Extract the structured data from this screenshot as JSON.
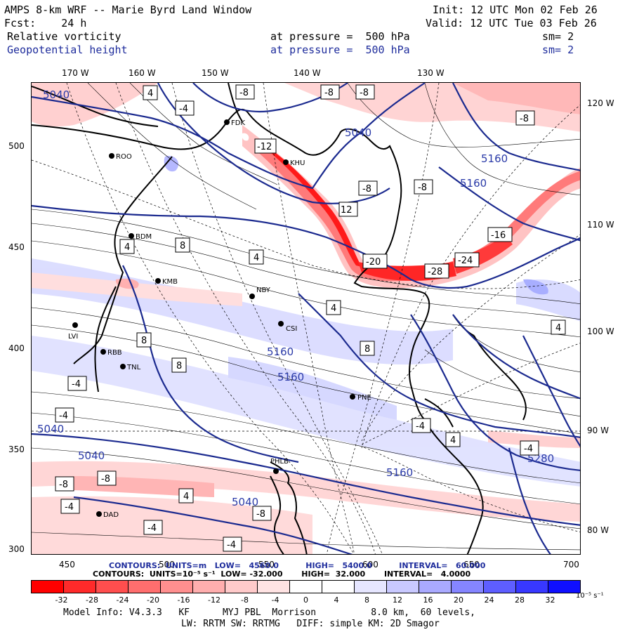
{
  "header": {
    "title": "AMPS 8-km WRF -- Marie Byrd Land Window",
    "init": "Init: 12 UTC Mon 02 Feb 26",
    "fcst": "Fcst:    24 h",
    "valid": "Valid: 12 UTC Tue 03 Feb 26",
    "field1": "Relative vorticity",
    "field1_level": "at pressure =  500 hPa",
    "field1_sm": "sm= 2",
    "field2": "Geopotential height",
    "field2_level": "at pressure =  500 hPa",
    "field2_sm": "sm= 2"
  },
  "axes": {
    "top_lon": [
      "170 W",
      "160 W",
      "150 W",
      "140 W",
      "130 W"
    ],
    "right_lon": [
      "120 W",
      "110 W",
      "100 W",
      "90 W",
      "80 W"
    ],
    "left_y": [
      "500",
      "450",
      "400",
      "350",
      "300"
    ],
    "bottom_x": [
      "450",
      "500",
      "550",
      "600",
      "650",
      "700"
    ]
  },
  "stations": [
    {
      "id": "FDK",
      "label": "FDK"
    },
    {
      "id": "ROO",
      "label": "ROO"
    },
    {
      "id": "BDM",
      "label": "BDM"
    },
    {
      "id": "KMB",
      "label": "KMB"
    },
    {
      "id": "NBY",
      "label": "NBY"
    },
    {
      "id": "LVI",
      "label": "LVI"
    },
    {
      "id": "RBB",
      "label": "RBB"
    },
    {
      "id": "TNL",
      "label": "TNL"
    },
    {
      "id": "PNE",
      "label": "PNE"
    },
    {
      "id": "PHL",
      "label": "PHLB"
    },
    {
      "id": "CSI",
      "label": "CSI"
    },
    {
      "id": "KHU",
      "label": "KHU"
    },
    {
      "id": "DAD",
      "label": "DAD"
    }
  ],
  "height_labels": [
    "5040",
    "5040",
    "5040",
    "5040",
    "5160",
    "5160",
    "5160",
    "5160",
    "5160",
    "5040",
    "5280"
  ],
  "vort_labels": [
    "-8",
    "4",
    "-4",
    "8",
    "-12",
    "12",
    "-20",
    "-28",
    "-24",
    "-16"
  ],
  "footer": {
    "contours_height": "CONTOURS:  UNITS=m   LOW=   4560.0          HIGH=   5400.0          INTERVAL=   60.000",
    "contours_vort": "CONTOURS:  UNITS=10⁻⁵ s⁻¹  LOW= -32.000       HIGH=  32.000       INTERVAL=   4.0000",
    "model_info": "Model Info: V4.3.3   KF      MYJ PBL  Morrison          8.0 km,  60 levels,",
    "model_info2": "LW: RRTM SW: RRTMG   DIFF: simple KM: 2D Smagor"
  },
  "colorbar": {
    "labels": [
      "-32",
      "-28",
      "-24",
      "-20",
      "-16",
      "-12",
      "-8",
      "-4",
      "0",
      "4",
      "8",
      "12",
      "16",
      "20",
      "24",
      "28",
      "32"
    ],
    "units": "10⁻⁵ s⁻¹",
    "colors": [
      "#ff0000",
      "#ff2a2a",
      "#ff4e4e",
      "#ff6e6e",
      "#ff8f8f",
      "#ffaeae",
      "#ffcaca",
      "#ffe3e3",
      "#ffffff",
      "#ffffff",
      "#e6e6ff",
      "#c9c9ff",
      "#aaaaff",
      "#8585ff",
      "#5e5eff",
      "#3838ff",
      "#0f0fff"
    ]
  }
}
